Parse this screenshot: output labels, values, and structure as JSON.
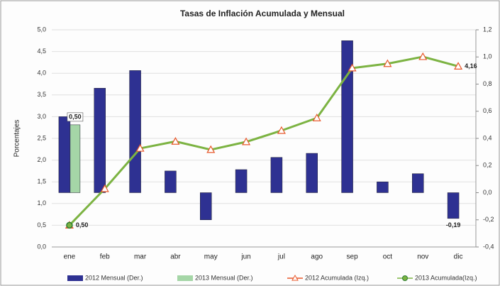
{
  "chart_data": {
    "type": "bar-line",
    "title": "Tasas de Inflación Acumulada y Mensual",
    "y_label": "Porcentajes",
    "categories": [
      "ene",
      "feb",
      "mar",
      "abr",
      "may",
      "jun",
      "jul",
      "ago",
      "sep",
      "oct",
      "nov",
      "dic"
    ],
    "ylim": [
      0,
      5
    ],
    "yticks": [
      {
        "value": 0,
        "label": "0,0"
      },
      {
        "value": 0.5,
        "label": "0,5"
      },
      {
        "value": 1,
        "label": "1,0"
      },
      {
        "value": 1.5,
        "label": "1,5"
      },
      {
        "value": 2,
        "label": "2,0"
      },
      {
        "value": 2.5,
        "label": "2,5"
      },
      {
        "value": 3,
        "label": "3,0"
      },
      {
        "value": 3.5,
        "label": "3,5"
      },
      {
        "value": 4,
        "label": "4,0"
      },
      {
        "value": 4.5,
        "label": "4,5"
      },
      {
        "value": 5,
        "label": "5,0"
      }
    ],
    "y2lim": [
      -0.4,
      1.2
    ],
    "y2ticks": [
      {
        "value": -0.4,
        "label": "-0,4"
      },
      {
        "value": -0.2,
        "label": "-0,2"
      },
      {
        "value": 0,
        "label": "0,0"
      },
      {
        "value": 0.2,
        "label": "0,2"
      },
      {
        "value": 0.4,
        "label": "0,4"
      },
      {
        "value": 0.6,
        "label": "0,6"
      },
      {
        "value": 0.8,
        "label": "0,8"
      },
      {
        "value": 1,
        "label": "1,0"
      },
      {
        "value": 1.2,
        "label": "1,2"
      }
    ],
    "grid": true,
    "series": [
      {
        "name": "2012 Mensual (Der.)",
        "kind": "bar",
        "axis": "y2",
        "color": "#2e3192",
        "values": [
          0.56,
          0.77,
          0.9,
          0.16,
          -0.2,
          0.17,
          0.26,
          0.29,
          1.12,
          0.08,
          0.14,
          -0.19
        ],
        "value_labels": [
          null,
          null,
          null,
          null,
          null,
          null,
          null,
          null,
          null,
          null,
          null,
          "-0,19"
        ],
        "label_color": "#1e88e5"
      },
      {
        "name": "2013 Mensual (Der.)",
        "kind": "bar",
        "axis": "y2",
        "color": "#a5d6a7",
        "values": [
          0.5,
          null,
          null,
          null,
          null,
          null,
          null,
          null,
          null,
          null,
          null,
          null
        ],
        "value_labels": [
          "0,50",
          null,
          null,
          null,
          null,
          null,
          null,
          null,
          null,
          null,
          null,
          null
        ],
        "label_color": "#111"
      },
      {
        "name": "2012 Acumulada (Izq.)",
        "kind": "line",
        "marker": "triangle",
        "color": "#7cb342",
        "marker_color": "#e8572a",
        "values": [
          0.5,
          1.34,
          2.27,
          2.43,
          2.24,
          2.42,
          2.68,
          2.97,
          4.12,
          4.22,
          4.38,
          4.16
        ],
        "value_labels": [
          null,
          null,
          null,
          null,
          null,
          null,
          null,
          null,
          null,
          null,
          null,
          "4,16"
        ],
        "label_color": "#e53935"
      },
      {
        "name": "2013 Acumulada(Izq.)",
        "kind": "line",
        "marker": "circle",
        "color": "#7cb342",
        "marker_color": "#2e7d32",
        "values": [
          0.5,
          null,
          null,
          null,
          null,
          null,
          null,
          null,
          null,
          null,
          null,
          null
        ],
        "value_labels": [
          "0,50",
          null,
          null,
          null,
          null,
          null,
          null,
          null,
          null,
          null,
          null,
          null
        ],
        "label_color": "#111"
      }
    ]
  }
}
